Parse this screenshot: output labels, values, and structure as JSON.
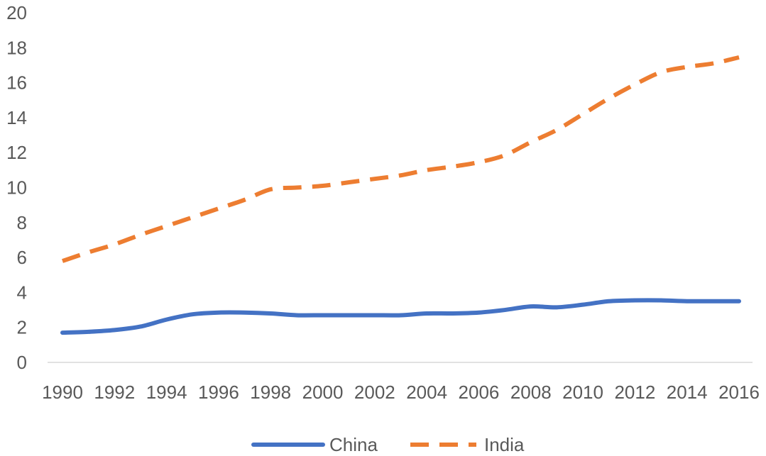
{
  "chart_data": {
    "type": "line",
    "title": "",
    "xlabel": "",
    "ylabel": "",
    "x": [
      1990,
      1991,
      1992,
      1993,
      1994,
      1995,
      1996,
      1997,
      1998,
      1999,
      2000,
      2001,
      2002,
      2003,
      2004,
      2005,
      2006,
      2007,
      2008,
      2009,
      2010,
      2011,
      2012,
      2013,
      2014,
      2015,
      2016
    ],
    "x_tick_labels": [
      "1990",
      "1992",
      "1994",
      "1996",
      "1998",
      "2000",
      "2002",
      "2004",
      "2006",
      "2008",
      "2010",
      "2012",
      "2014",
      "2016"
    ],
    "y_tick_labels": [
      "0",
      "2",
      "4",
      "6",
      "8",
      "10",
      "12",
      "14",
      "16",
      "18",
      "20"
    ],
    "ylim": [
      0,
      20
    ],
    "grid": false,
    "legend_position": "bottom",
    "series": [
      {
        "name": "China",
        "color": "#4472C4",
        "style": "solid",
        "values": [
          1.7,
          1.75,
          1.85,
          2.05,
          2.45,
          2.75,
          2.85,
          2.85,
          2.8,
          2.7,
          2.7,
          2.7,
          2.7,
          2.7,
          2.8,
          2.8,
          2.85,
          3.0,
          3.2,
          3.15,
          3.3,
          3.5,
          3.55,
          3.55,
          3.5,
          3.5,
          3.5
        ]
      },
      {
        "name": "India",
        "color": "#ED7D31",
        "style": "dashed",
        "values": [
          5.8,
          6.3,
          6.75,
          7.3,
          7.8,
          8.3,
          8.8,
          9.3,
          9.9,
          10.0,
          10.1,
          10.3,
          10.5,
          10.7,
          11.0,
          11.2,
          11.45,
          11.85,
          12.6,
          13.3,
          14.2,
          15.1,
          15.9,
          16.6,
          16.9,
          17.1,
          17.45
        ]
      }
    ]
  }
}
